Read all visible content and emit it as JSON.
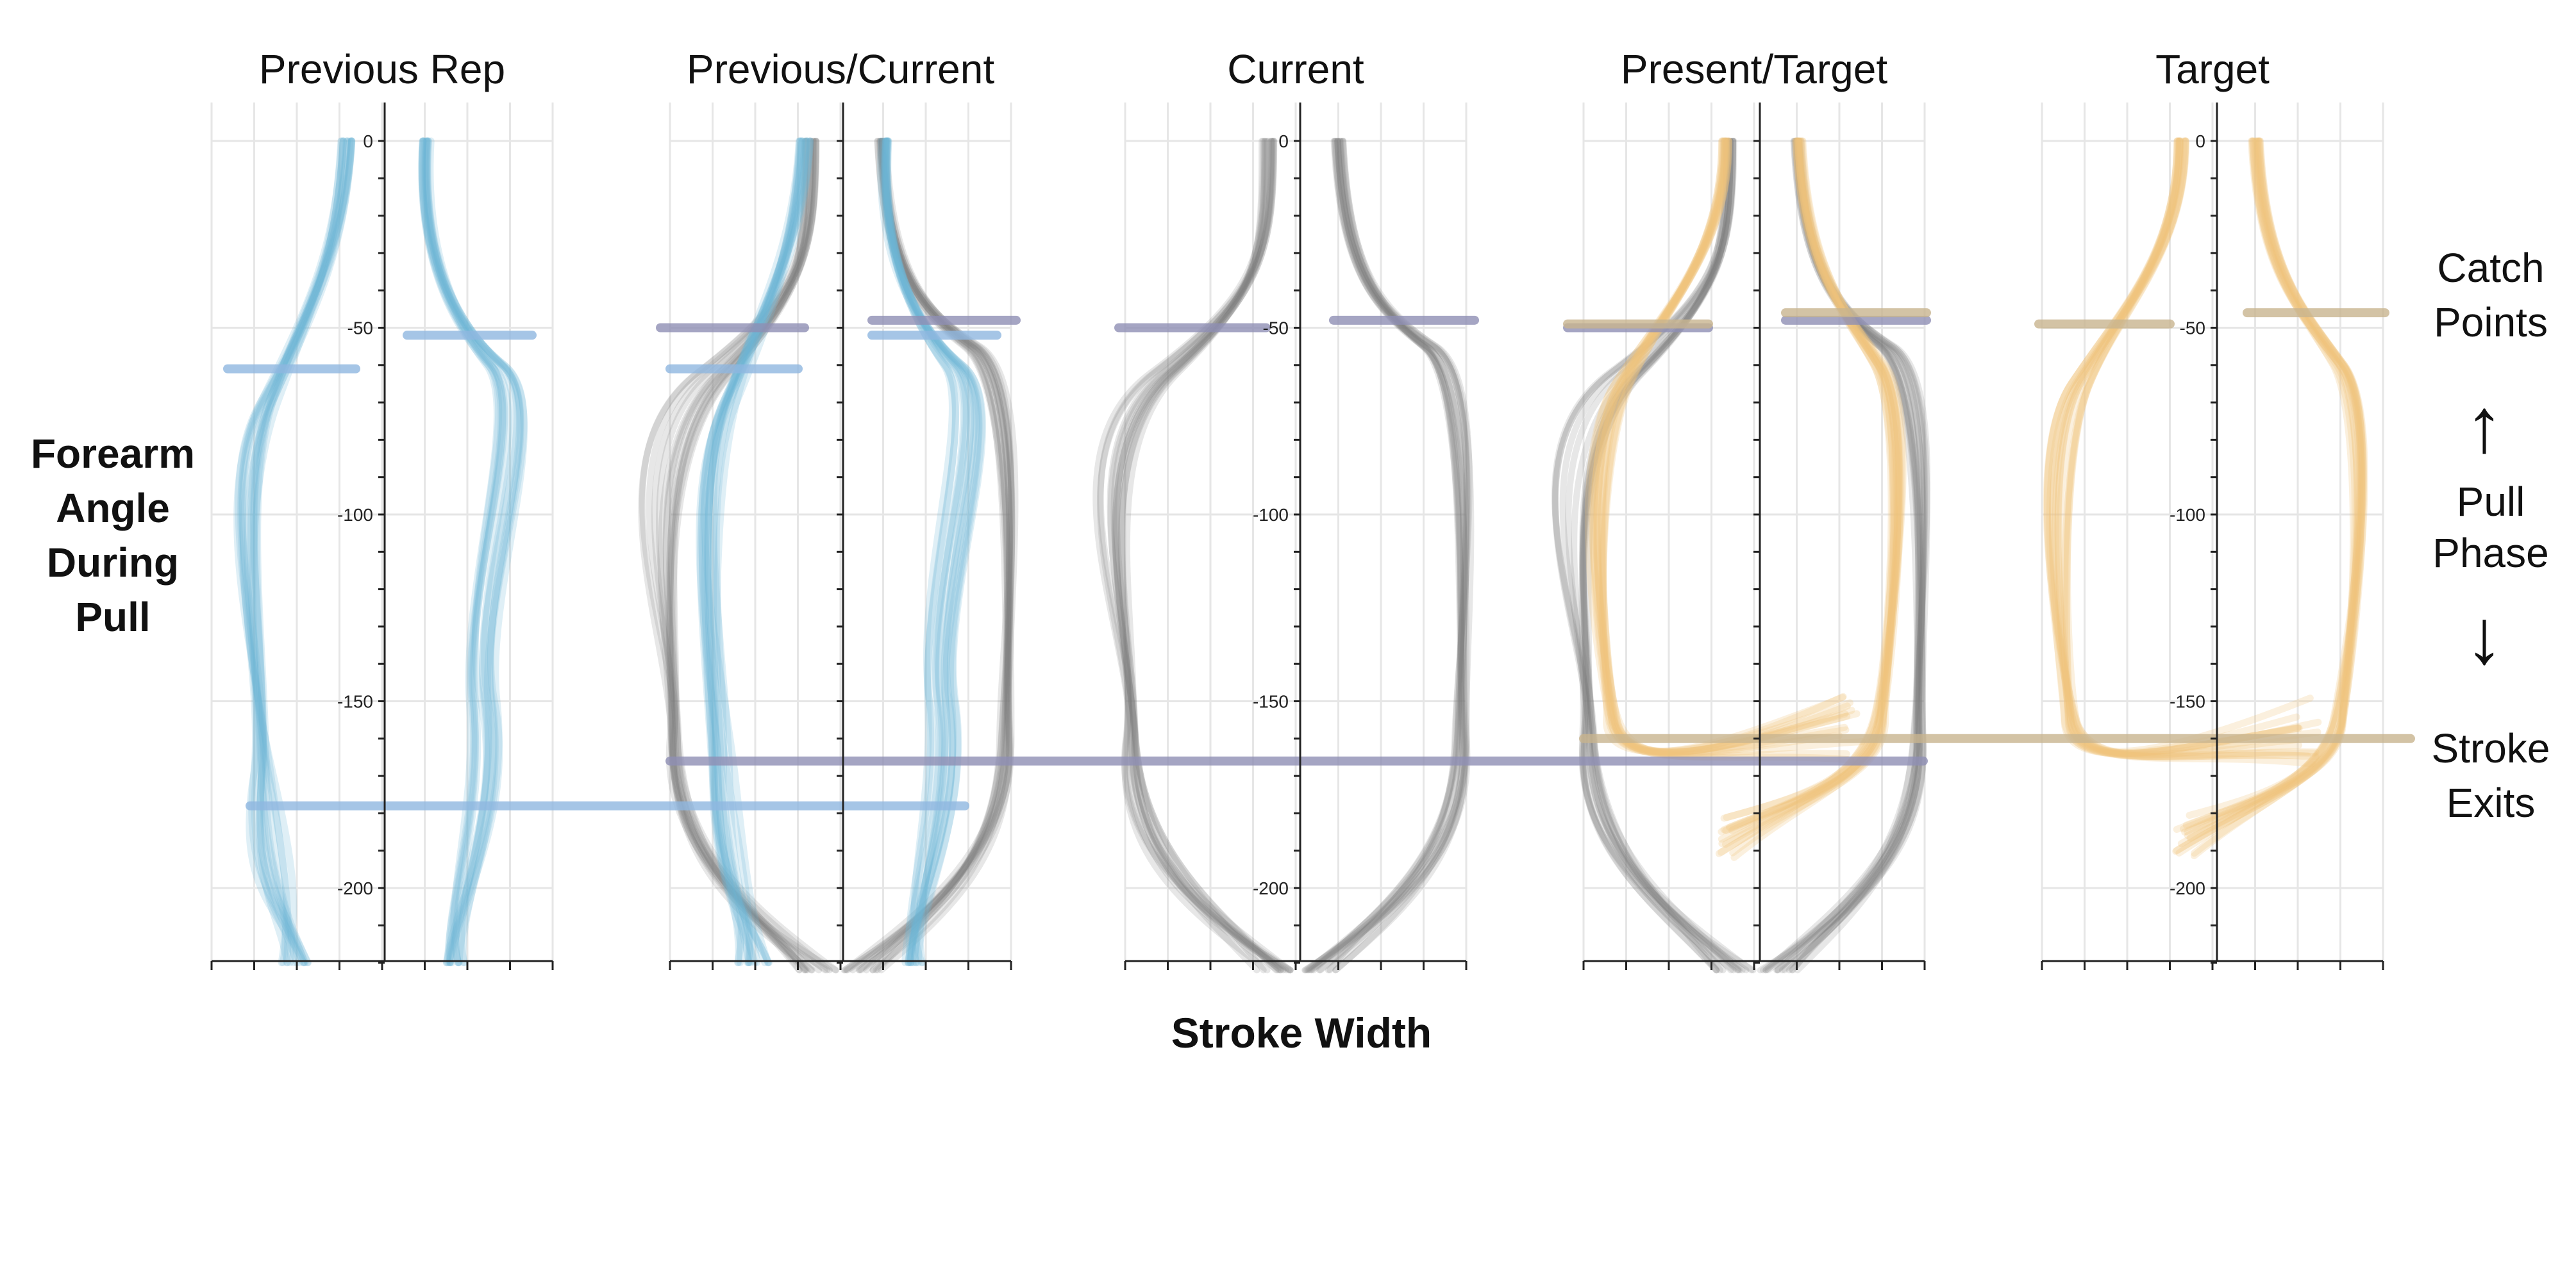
{
  "chart_data": {
    "type": "line",
    "xlabel": "Stroke Width",
    "ylabel": "Forearm Angle During Pull",
    "ylim": [
      -220,
      10
    ],
    "y_ticks": [
      0,
      -50,
      -100,
      -150,
      -200
    ],
    "grid": true,
    "colors": {
      "previous": "#6fb8d4",
      "current": "#7a7a7a",
      "target": "#f0c27a",
      "prev_marker": "#8fb7e0",
      "cur_marker": "#8f8fb4",
      "tgt_marker": "#c8b48f"
    },
    "panels": [
      {
        "title": "Previous Rep",
        "series": [
          "previous"
        ],
        "catch_left": [
          -61
        ],
        "catch_right": [
          -52
        ],
        "exit": -178
      },
      {
        "title": "Previous/Current",
        "series": [
          "current",
          "previous"
        ],
        "catch_left": [
          -50,
          -61
        ],
        "catch_right": [
          -48,
          -52
        ],
        "exit": -166
      },
      {
        "title": "Current",
        "series": [
          "current"
        ],
        "catch_left": [
          -50
        ],
        "catch_right": [
          -48
        ],
        "exit": -166
      },
      {
        "title": "Present/Target",
        "series": [
          "current",
          "target"
        ],
        "catch_left": [
          -50,
          -49
        ],
        "catch_right": [
          -48,
          -46
        ],
        "exit": -160
      },
      {
        "title": "Target",
        "series": [
          "target"
        ],
        "catch_left": [
          -49
        ],
        "catch_right": [
          -46
        ],
        "exit": -160
      }
    ],
    "annotations": {
      "catch_points": [
        "Catch",
        "Points"
      ],
      "pull_phase": [
        "Pull",
        "Phase"
      ],
      "stroke_exits": [
        "Stroke",
        "Exits"
      ],
      "arrow_up": "↑",
      "arrow_down": "↓"
    },
    "y_label_lines": [
      "Forearm",
      "Angle",
      "During",
      "Pull"
    ]
  }
}
